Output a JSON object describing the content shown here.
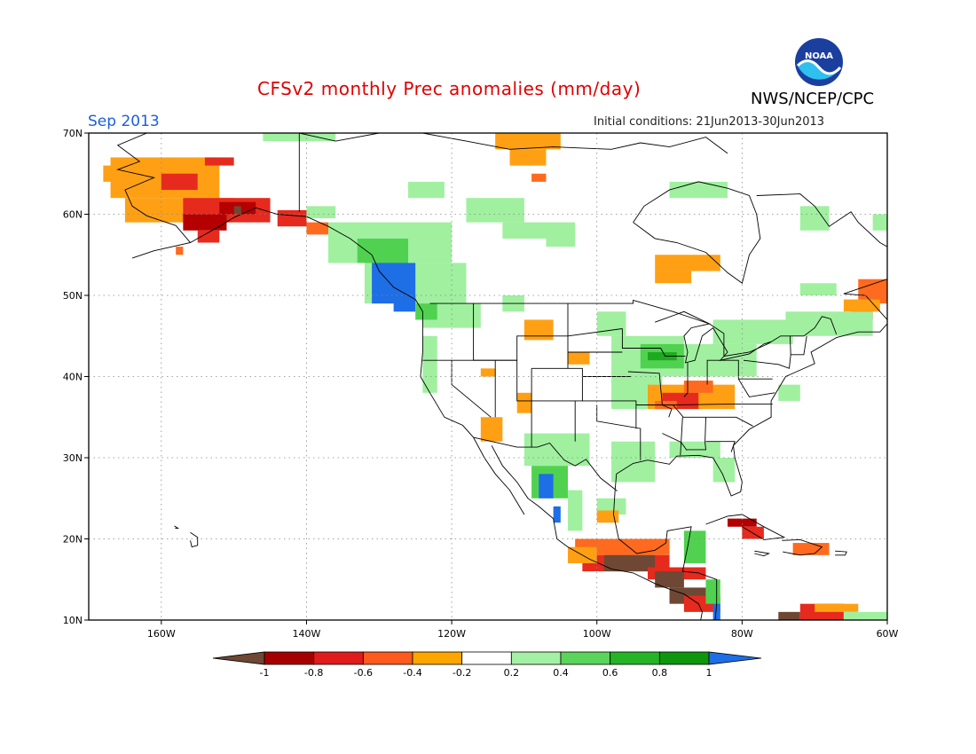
{
  "header": {
    "title": "CFSv2 monthly Prec anomalies (mm/day)",
    "month": "Sep 2013",
    "agency": "NWS/NCEP/CPC",
    "initial_conditions": "Initial conditions: 21Jun2013-30Jun2013",
    "logo_text": "NOAA"
  },
  "map": {
    "lat_labels": [
      "70N",
      "60N",
      "50N",
      "40N",
      "30N",
      "20N",
      "10N"
    ],
    "lon_labels": [
      "160W",
      "140W",
      "120W",
      "100W",
      "80W",
      "60W"
    ],
    "lon_range": [
      -170,
      -60
    ],
    "lat_range": [
      10,
      70
    ]
  },
  "colorbar": {
    "labels": [
      "-1",
      "-0.8",
      "-0.6",
      "-0.4",
      "-0.2",
      "0.2",
      "0.4",
      "0.6",
      "0.8",
      "1"
    ],
    "colors": [
      "#6e4834",
      "#a50000",
      "#e01b1b",
      "#ff5a1e",
      "#ffa500",
      "#ffffff",
      "#a4f0a4",
      "#5ad45a",
      "#25b425",
      "#0e960e",
      "#1e6ee6"
    ]
  },
  "anomaly_colors": {
    "brown": "#6e4834",
    "darkred": "#b40000",
    "red": "#e62a1e",
    "orangered": "#ff6a1e",
    "orange": "#ffa014",
    "lightgreen": "#a0f0a0",
    "green": "#50d250",
    "darkgreen": "#1eaa1e",
    "blue": "#1e6ee6"
  }
}
